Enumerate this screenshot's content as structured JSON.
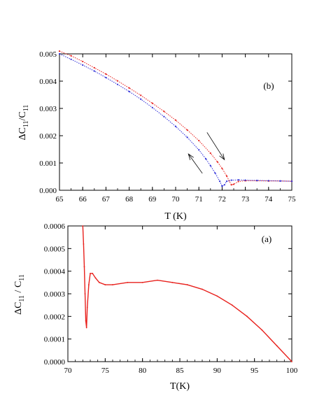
{
  "chart_data": [
    {
      "type": "scatter",
      "panel_label": "(b)",
      "xlabel": "T (K)",
      "ylabel_main": "ΔC",
      "ylabel_sub1": "11",
      "ylabel_mid": "/C",
      "ylabel_sub2": "11",
      "xlim": [
        65,
        75
      ],
      "ylim": [
        0.0,
        0.005
      ],
      "xticks": [
        "65",
        "66",
        "67",
        "68",
        "69",
        "70",
        "71",
        "72",
        "73",
        "74",
        "75"
      ],
      "yticks": [
        "0.000",
        "0.001",
        "0.002",
        "0.003",
        "0.004",
        "0.005"
      ],
      "series": [
        {
          "color": "#e8201c",
          "x": [
            65.0,
            65.5,
            66.0,
            66.5,
            67.0,
            67.5,
            68.0,
            68.5,
            69.0,
            69.5,
            70.0,
            70.5,
            71.0,
            71.5,
            71.8,
            72.0,
            72.2,
            72.3,
            72.4,
            72.5,
            72.7,
            73.0,
            73.5,
            74.0,
            74.5,
            75.0
          ],
          "y": [
            0.0051,
            0.00493,
            0.00472,
            0.00449,
            0.00426,
            0.00401,
            0.00375,
            0.00348,
            0.00319,
            0.00289,
            0.00257,
            0.00221,
            0.00182,
            0.00136,
            0.00104,
            0.0008,
            0.00052,
            0.00035,
            0.0002,
            0.00022,
            0.00032,
            0.00035,
            0.00035,
            0.00034,
            0.00034,
            0.00033
          ]
        },
        {
          "color": "#2b2bd8",
          "x": [
            65.0,
            65.5,
            66.0,
            66.5,
            67.0,
            67.5,
            68.0,
            68.5,
            69.0,
            69.5,
            70.0,
            70.5,
            71.0,
            71.3,
            71.5,
            71.7,
            71.9,
            72.0,
            72.1,
            72.2,
            72.4,
            72.7,
            73.0,
            73.5,
            74.0,
            74.5,
            75.0
          ],
          "y": [
            0.005,
            0.0048,
            0.00459,
            0.00437,
            0.00413,
            0.00388,
            0.00362,
            0.00334,
            0.00303,
            0.0027,
            0.00234,
            0.00194,
            0.00148,
            0.00115,
            0.0009,
            0.00063,
            0.00033,
            0.00015,
            0.0002,
            0.00033,
            0.00037,
            0.00038,
            0.00037,
            0.00036,
            0.00035,
            0.00034,
            0.00033
          ]
        }
      ],
      "arrows": [
        {
          "direction": "up",
          "from": [
            71.15,
            0.00062
          ],
          "to": [
            70.55,
            0.00133
          ]
        },
        {
          "direction": "down",
          "from": [
            71.35,
            0.00212
          ],
          "to": [
            72.1,
            0.00112
          ]
        }
      ]
    },
    {
      "type": "line",
      "panel_label": "(a)",
      "xlabel": "T(K)",
      "ylabel_main": "ΔC",
      "ylabel_sub1": "11",
      "ylabel_mid": " / C",
      "ylabel_sub2": "11",
      "xlim": [
        70,
        100
      ],
      "ylim": [
        0.0,
        0.0006
      ],
      "xticks": [
        "70",
        "75",
        "80",
        "85",
        "90",
        "95",
        "100"
      ],
      "yticks": [
        "0.0000",
        "0.0001",
        "0.0002",
        "0.0003",
        "0.0004",
        "0.0005",
        "0.0006"
      ],
      "series": [
        {
          "color": "#e8201c",
          "x": [
            72.0,
            72.1,
            72.2,
            72.3,
            72.4,
            72.5,
            72.6,
            72.8,
            73.0,
            73.3,
            73.7,
            74.2,
            75.0,
            76.0,
            78.0,
            80.0,
            82.0,
            84.0,
            86.0,
            88.0,
            90.0,
            92.0,
            94.0,
            96.0,
            98.0,
            100.0
          ],
          "y": [
            0.0006,
            0.00052,
            0.00042,
            0.0003,
            0.00018,
            0.00015,
            0.00024,
            0.00034,
            0.00039,
            0.00039,
            0.00037,
            0.00035,
            0.00034,
            0.00034,
            0.00035,
            0.00035,
            0.00036,
            0.00035,
            0.00034,
            0.00032,
            0.00029,
            0.00025,
            0.0002,
            0.00014,
            7e-05,
            0.0
          ]
        }
      ]
    }
  ]
}
